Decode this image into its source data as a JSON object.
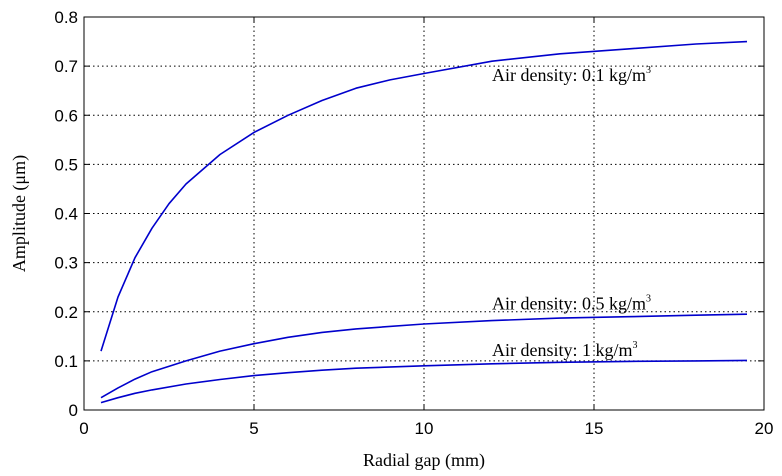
{
  "chart_data": {
    "type": "line",
    "xlabel": "Radial gap (mm)",
    "ylabel": "Amplitude (μm)",
    "xlim": [
      0,
      20
    ],
    "ylim": [
      0,
      0.8
    ],
    "xticks": [
      "0",
      "5",
      "10",
      "15",
      "20"
    ],
    "yticks": [
      "0",
      "0.1",
      "0.2",
      "0.3",
      "0.4",
      "0.5",
      "0.6",
      "0.7",
      "0.8"
    ],
    "grid": true,
    "line_color": "#0000cc",
    "series": [
      {
        "x": [
          0.5,
          1,
          1.5,
          2,
          2.5,
          3,
          4,
          5,
          6,
          7,
          8,
          9,
          10,
          12,
          14,
          16,
          18,
          19.5
        ],
        "y": [
          0.12,
          0.23,
          0.31,
          0.37,
          0.42,
          0.46,
          0.52,
          0.565,
          0.6,
          0.63,
          0.655,
          0.672,
          0.685,
          0.71,
          0.725,
          0.735,
          0.745,
          0.75
        ]
      },
      {
        "x": [
          0.5,
          1,
          1.5,
          2,
          3,
          4,
          5,
          6,
          7,
          8,
          10,
          12,
          14,
          16,
          18,
          19.5
        ],
        "y": [
          0.025,
          0.045,
          0.063,
          0.078,
          0.1,
          0.12,
          0.135,
          0.148,
          0.158,
          0.165,
          0.175,
          0.182,
          0.187,
          0.19,
          0.193,
          0.195
        ]
      },
      {
        "x": [
          0.5,
          1,
          1.5,
          2,
          3,
          4,
          5,
          6,
          7,
          8,
          10,
          12,
          14,
          16,
          18,
          19.5
        ],
        "y": [
          0.015,
          0.025,
          0.034,
          0.041,
          0.053,
          0.062,
          0.07,
          0.076,
          0.081,
          0.085,
          0.09,
          0.094,
          0.097,
          0.099,
          0.1,
          0.101
        ]
      }
    ],
    "annotations": [
      {
        "text": "Air density: 0.1 kg/m",
        "sup": "3",
        "x": 12.0,
        "y": 0.67
      },
      {
        "text": "Air density: 0.5 kg/m",
        "sup": "3",
        "x": 12.0,
        "y": 0.205
      },
      {
        "text": "Air density: 1 kg/m",
        "sup": "3",
        "x": 12.0,
        "y": 0.11
      }
    ]
  }
}
